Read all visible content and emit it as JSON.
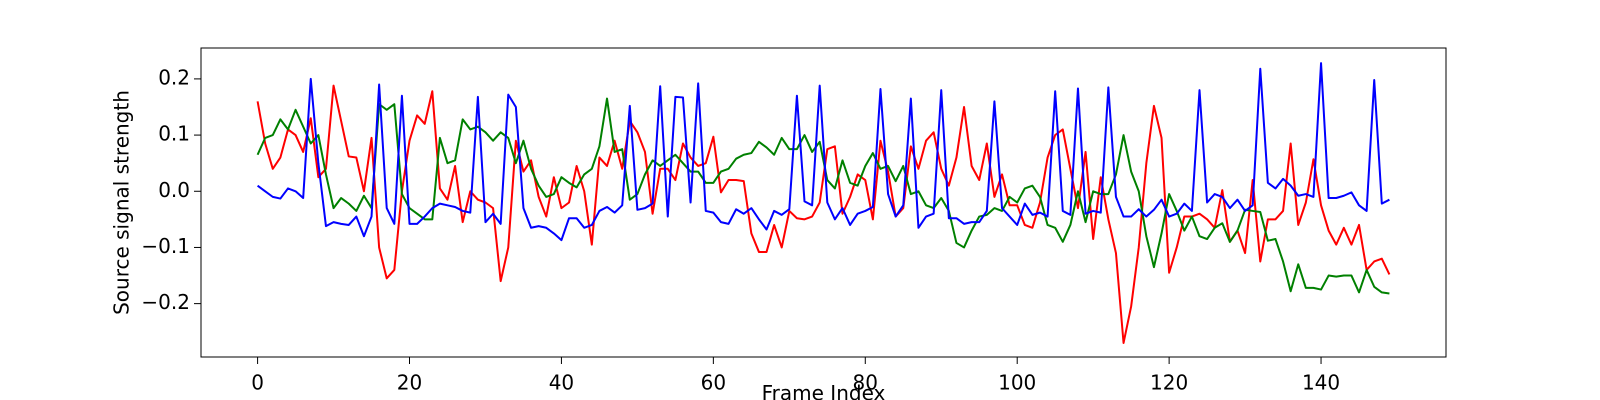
{
  "chart_data": {
    "type": "line",
    "xlabel": "Frame Index",
    "ylabel": "Source signal strength",
    "x": [
      0,
      1,
      2,
      3,
      4,
      5,
      6,
      7,
      8,
      9,
      10,
      11,
      12,
      13,
      14,
      15,
      16,
      17,
      18,
      19,
      20,
      21,
      22,
      23,
      24,
      25,
      26,
      27,
      28,
      29,
      30,
      31,
      32,
      33,
      34,
      35,
      36,
      37,
      38,
      39,
      40,
      41,
      42,
      43,
      44,
      45,
      46,
      47,
      48,
      49,
      50,
      51,
      52,
      53,
      54,
      55,
      56,
      57,
      58,
      59,
      60,
      61,
      62,
      63,
      64,
      65,
      66,
      67,
      68,
      69,
      70,
      71,
      72,
      73,
      74,
      75,
      76,
      77,
      78,
      79,
      80,
      81,
      82,
      83,
      84,
      85,
      86,
      87,
      88,
      89,
      90,
      91,
      92,
      93,
      94,
      95,
      96,
      97,
      98,
      99,
      100,
      101,
      102,
      103,
      104,
      105,
      106,
      107,
      108,
      109,
      110,
      111,
      112,
      113,
      114,
      115,
      116,
      117,
      118,
      119,
      120,
      121,
      122,
      123,
      124,
      125,
      126,
      127,
      128,
      129,
      130,
      131,
      132,
      133,
      134,
      135,
      136,
      137,
      138,
      139,
      140,
      141,
      142,
      143,
      144,
      145,
      146,
      147,
      148,
      149
    ],
    "series": [
      {
        "color": "#ff0000",
        "values": [
          0.16,
          0.085,
          0.04,
          0.06,
          0.11,
          0.1,
          0.07,
          0.13,
          0.025,
          0.04,
          0.188,
          0.125,
          0.062,
          0.06,
          0.0,
          0.095,
          -0.1,
          -0.155,
          -0.14,
          0.0,
          0.09,
          0.135,
          0.12,
          0.178,
          0.005,
          -0.015,
          0.045,
          -0.055,
          0.0,
          -0.015,
          -0.02,
          -0.03,
          -0.16,
          -0.1,
          0.09,
          0.035,
          0.055,
          -0.01,
          -0.045,
          0.025,
          -0.03,
          -0.02,
          0.045,
          0.0,
          -0.095,
          0.06,
          0.045,
          0.09,
          0.04,
          0.125,
          0.105,
          0.07,
          -0.04,
          0.04,
          0.04,
          0.02,
          0.085,
          0.06,
          0.045,
          0.05,
          0.097,
          -0.002,
          0.02,
          0.02,
          0.018,
          -0.075,
          -0.108,
          -0.108,
          -0.06,
          -0.1,
          -0.035,
          -0.048,
          -0.05,
          -0.045,
          -0.02,
          0.075,
          0.08,
          -0.04,
          -0.01,
          0.03,
          0.02,
          -0.05,
          0.09,
          0.035,
          -0.045,
          -0.03,
          0.08,
          0.04,
          0.09,
          0.105,
          0.04,
          0.01,
          0.06,
          0.15,
          0.045,
          0.02,
          0.085,
          -0.01,
          0.03,
          -0.025,
          -0.025,
          -0.06,
          -0.065,
          -0.02,
          0.06,
          0.1,
          0.11,
          0.04,
          -0.03,
          0.07,
          -0.085,
          0.025,
          -0.05,
          -0.11,
          -0.27,
          -0.205,
          -0.1,
          0.05,
          0.152,
          0.095,
          -0.145,
          -0.1,
          -0.045,
          -0.045,
          -0.04,
          -0.05,
          -0.065,
          0.002,
          -0.09,
          -0.07,
          -0.11,
          0.02,
          -0.125,
          -0.05,
          -0.05,
          -0.035,
          0.085,
          -0.06,
          -0.02,
          0.057,
          -0.025,
          -0.07,
          -0.095,
          -0.065,
          -0.095,
          -0.06,
          -0.14,
          -0.125,
          -0.12,
          -0.148
        ]
      },
      {
        "color": "#008000",
        "values": [
          0.065,
          0.095,
          0.1,
          0.128,
          0.11,
          0.145,
          0.115,
          0.085,
          0.1,
          0.03,
          -0.03,
          -0.012,
          -0.022,
          -0.035,
          -0.008,
          -0.03,
          0.155,
          0.145,
          0.155,
          -0.005,
          -0.03,
          -0.04,
          -0.05,
          -0.05,
          0.095,
          0.05,
          0.055,
          0.128,
          0.11,
          0.115,
          0.105,
          0.09,
          0.105,
          0.095,
          0.05,
          0.09,
          0.04,
          0.01,
          -0.01,
          -0.005,
          0.025,
          0.015,
          0.007,
          0.03,
          0.04,
          0.08,
          0.165,
          0.07,
          0.075,
          -0.015,
          -0.005,
          0.03,
          0.055,
          0.045,
          0.055,
          0.065,
          0.05,
          0.035,
          0.035,
          0.015,
          0.015,
          0.035,
          0.04,
          0.058,
          0.065,
          0.068,
          0.088,
          0.078,
          0.065,
          0.095,
          0.075,
          0.075,
          0.1,
          0.07,
          0.088,
          0.02,
          0.005,
          0.055,
          0.015,
          0.01,
          0.045,
          0.068,
          0.04,
          0.045,
          0.018,
          0.045,
          -0.005,
          0.0,
          -0.025,
          -0.03,
          -0.012,
          -0.035,
          -0.092,
          -0.1,
          -0.07,
          -0.045,
          -0.042,
          -0.03,
          -0.035,
          -0.01,
          -0.02,
          0.005,
          0.01,
          -0.01,
          -0.06,
          -0.065,
          -0.09,
          -0.06,
          0.0,
          -0.055,
          0.0,
          -0.005,
          -0.005,
          0.03,
          0.1,
          0.035,
          0.0,
          -0.08,
          -0.135,
          -0.075,
          -0.005,
          -0.035,
          -0.07,
          -0.045,
          -0.08,
          -0.085,
          -0.065,
          -0.057,
          -0.09,
          -0.07,
          -0.033,
          -0.035,
          -0.037,
          -0.088,
          -0.085,
          -0.125,
          -0.178,
          -0.13,
          -0.172,
          -0.172,
          -0.175,
          -0.15,
          -0.152,
          -0.15,
          -0.15,
          -0.18,
          -0.14,
          -0.17,
          -0.18,
          -0.182
        ]
      },
      {
        "color": "#0000ff",
        "values": [
          0.01,
          0.0,
          -0.01,
          -0.013,
          0.005,
          0.0,
          -0.012,
          0.2,
          0.05,
          -0.062,
          -0.055,
          -0.058,
          -0.06,
          -0.045,
          -0.08,
          -0.045,
          0.19,
          -0.03,
          -0.058,
          0.17,
          -0.058,
          -0.058,
          -0.045,
          -0.03,
          -0.022,
          -0.025,
          -0.028,
          -0.035,
          -0.038,
          0.168,
          -0.055,
          -0.04,
          -0.058,
          0.172,
          0.15,
          -0.03,
          -0.065,
          -0.062,
          -0.065,
          -0.075,
          -0.087,
          -0.048,
          -0.048,
          -0.065,
          -0.06,
          -0.035,
          -0.028,
          -0.038,
          -0.025,
          0.152,
          -0.033,
          -0.03,
          -0.022,
          0.187,
          -0.045,
          0.168,
          0.167,
          -0.02,
          0.192,
          -0.035,
          -0.038,
          -0.055,
          -0.058,
          -0.032,
          -0.04,
          -0.03,
          -0.05,
          -0.068,
          -0.035,
          -0.042,
          -0.032,
          0.17,
          -0.018,
          -0.025,
          0.188,
          -0.02,
          -0.05,
          -0.03,
          -0.06,
          -0.04,
          -0.035,
          -0.028,
          0.182,
          -0.005,
          -0.045,
          -0.025,
          0.165,
          -0.065,
          -0.045,
          -0.04,
          0.18,
          -0.048,
          -0.048,
          -0.058,
          -0.055,
          -0.055,
          -0.035,
          0.16,
          -0.03,
          -0.045,
          -0.06,
          -0.022,
          -0.042,
          -0.038,
          -0.045,
          0.178,
          -0.035,
          -0.042,
          0.183,
          -0.04,
          -0.035,
          -0.038,
          0.185,
          -0.01,
          -0.045,
          -0.045,
          -0.032,
          -0.045,
          -0.033,
          -0.015,
          -0.045,
          -0.04,
          -0.022,
          -0.035,
          0.18,
          -0.02,
          -0.005,
          -0.01,
          -0.03,
          -0.015,
          -0.035,
          -0.025,
          0.218,
          0.015,
          0.005,
          0.022,
          0.01,
          -0.008,
          -0.005,
          -0.01,
          0.228,
          -0.012,
          -0.012,
          -0.008,
          -0.002,
          -0.025,
          -0.035,
          0.198,
          -0.022,
          -0.015
        ]
      }
    ],
    "xlim": [
      -7.45,
      156.45
    ],
    "ylim": [
      -0.295,
      0.255
    ],
    "xticks": [
      0,
      20,
      40,
      60,
      80,
      100,
      120,
      140
    ],
    "yticks": [
      {
        "value": -0.2,
        "label": "−0.2"
      },
      {
        "value": -0.1,
        "label": "−0.1"
      },
      {
        "value": 0,
        "label": "0.0"
      },
      0.1,
      0.2
    ]
  }
}
